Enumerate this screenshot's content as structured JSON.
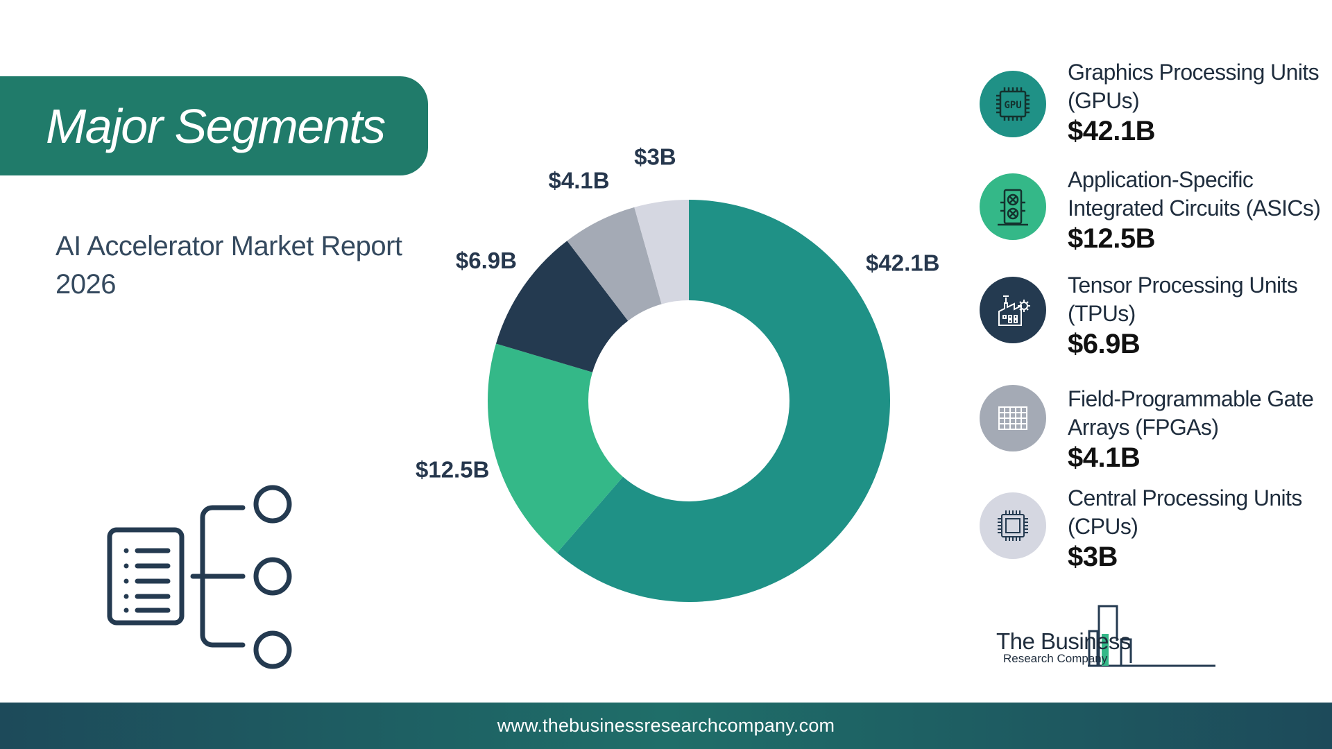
{
  "banner": {
    "title": "Major Segments"
  },
  "subtitle": "AI Accelerator Market Report 2026",
  "chart_data": {
    "type": "pie",
    "donut": true,
    "categories": [
      "Graphics Processing Units (GPUs)",
      "Application-Specific Integrated Circuits (ASICs)",
      "Tensor Processing Units (TPUs)",
      "Field-Programmable Gate Arrays (FPGAs)",
      "Central Processing Units (CPUs)"
    ],
    "values": [
      42.1,
      12.5,
      6.9,
      4.1,
      3.0
    ],
    "labels": [
      "$42.1B",
      "$12.5B",
      "$6.9B",
      "$4.1B",
      "$3B"
    ],
    "colors": [
      "#1f9186",
      "#34b888",
      "#243a50",
      "#a4aab5",
      "#d5d7e1"
    ],
    "title": "",
    "legend_position": "right"
  },
  "legend": [
    {
      "name": "Graphics Processing Units (GPUs)",
      "value": "$42.1B",
      "icon": "gpu-chip-icon",
      "color": "#1f9186"
    },
    {
      "name": "Application-Specific Integrated Circuits (ASICs)",
      "value": "$12.5B",
      "icon": "asic-chip-icon",
      "color": "#34b888"
    },
    {
      "name": "Tensor Processing Units (TPUs)",
      "value": "$6.9B",
      "icon": "factory-gear-icon",
      "color": "#243a50"
    },
    {
      "name": "Field-Programmable Gate Arrays (FPGAs)",
      "value": "$4.1B",
      "icon": "grid-chip-icon",
      "color": "#a4aab5"
    },
    {
      "name": "Central Processing Units (CPUs)",
      "value": "$3B",
      "icon": "cpu-chip-icon",
      "color": "#d5d7e1"
    }
  ],
  "logo": {
    "line1": "The Business",
    "line2": "Research Company"
  },
  "footer": {
    "url": "www.thebusinessresearchcompany.com"
  }
}
